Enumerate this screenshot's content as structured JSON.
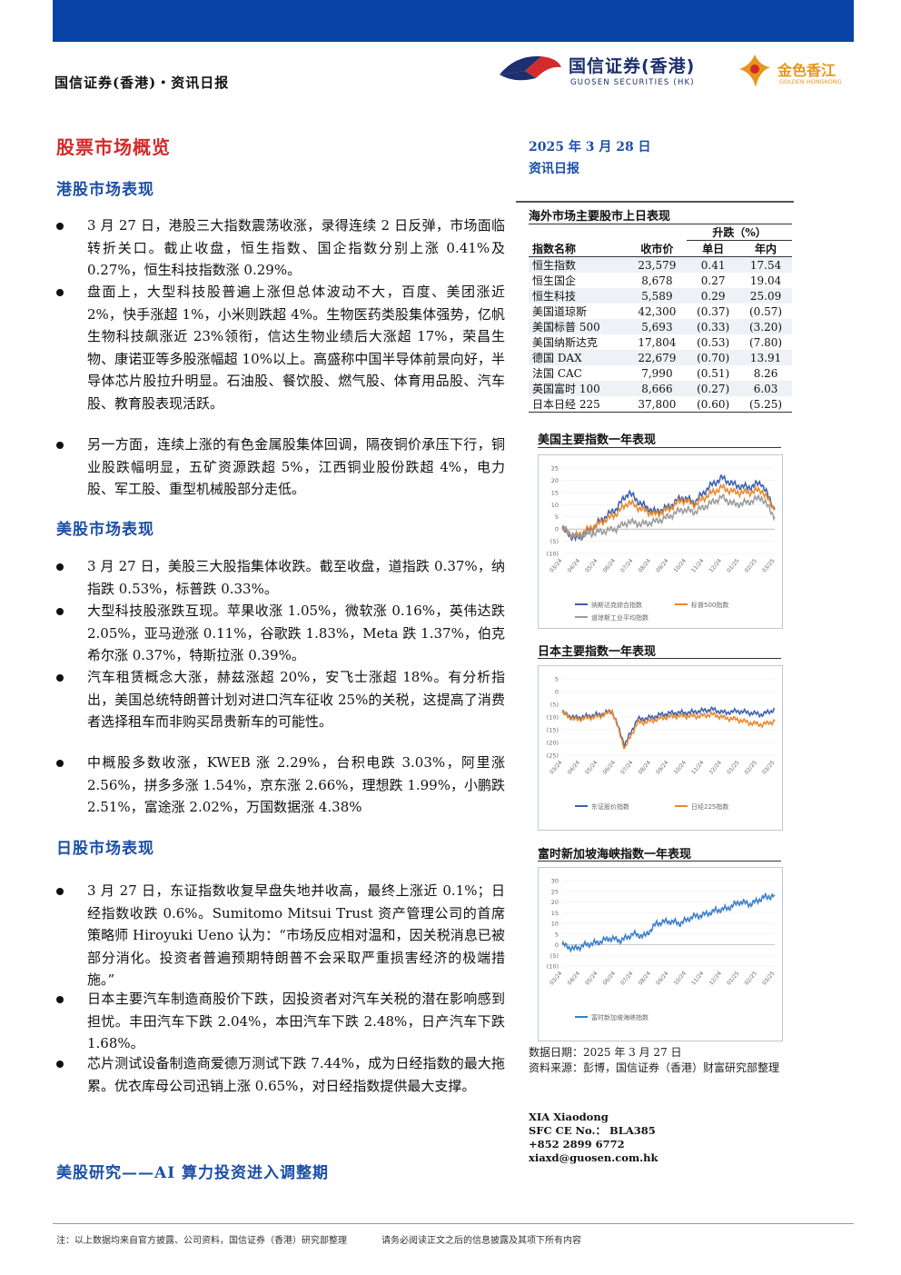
{
  "header": {
    "left": "国信证券(香港)・资讯日报",
    "logo_name": "国信证券(香港)",
    "logo_sub": "GUOSEN SECURITIES (HK)",
    "logo2_name": "金色香江",
    "logo2_sub": "GOLDEN HONGKONG"
  },
  "main_title": "股票市场概览",
  "sections": {
    "hk": {
      "title": "港股市场表现",
      "bullets": [
        "3 月 27 日，港股三大指数震荡收涨，录得连续 2 日反弹，市场面临转折关口。截止收盘，恒生指数、国企指数分别上涨 0.41%及 0.27%，恒生科技指数涨 0.29%。",
        "盘面上，大型科技股普遍上涨但总体波动不大，百度、美团涨近 2%，快手涨超 1%，小米则跌超 4%。生物医药类股集体强势，亿帆生物科技飙涨近 23%领衔，信达生物业绩后大涨超 17%，荣昌生物、康诺亚等多股涨幅超 10%以上。高盛称中国半导体前景向好，半导体芯片股拉升明显。石油股、餐饮股、燃气股、体育用品股、汽车股、教育股表现活跃。",
        "另一方面，连续上涨的有色金属股集体回调，隔夜铜价承压下行，铜业股跌幅明显，五矿资源跌超 5%，江西铜业股份跌超 4%，电力股、军工股、重型机械股部分走低。"
      ]
    },
    "us": {
      "title": "美股市场表现",
      "bullets": [
        "3 月 27 日，美股三大股指集体收跌。截至收盘，道指跌 0.37%，纳指跌 0.53%，标普跌 0.33%。",
        "大型科技股涨跌互现。苹果收涨 1.05%，微软涨 0.16%，英伟达跌 2.05%，亚马逊涨 0.11%，谷歌跌 1.83%，Meta 跌 1.37%，伯克希尔涨 0.37%，特斯拉涨 0.39%。",
        "汽车租赁概念大涨，赫兹涨超 20%，安飞士涨超 18%。有分析指出，美国总统特朗普计划对进口汽车征收 25%的关税，这提高了消费者选择租车而非购买昂贵新车的可能性。",
        "中概股多数收涨，KWEB 涨 2.29%，台积电跌 3.03%，阿里涨 2.56%，拼多多涨 1.54%，京东涨 2.66%，理想跌 1.99%，小鹏跌 2.51%，富途涨 2.02%，万国数据涨 4.38%"
      ]
    },
    "jp": {
      "title": "日股市场表现",
      "bullets": [
        "3 月 27 日，东证指数收复早盘失地并收高，最终上涨近 0.1%；日经指数收跌 0.6%。Sumitomo Mitsui Trust 资产管理公司的首席策略师 Hiroyuki Ueno 认为：“市场反应相对温和，因关税消息已被部分消化。投资者普遍预期特朗普不会采取严重损害经济的极端措施。”",
        "日本主要汽车制造商股价下跌，因投资者对汽车关税的潜在影响感到担忧。丰田汽车下跌 2.04%，本田汽车下跌 2.48%，日产汽车下跌 1.68%。",
        "芯片测试设备制造商爱德万测试下跌 7.44%，成为日经指数的最大拖累。优衣库母公司迅销上涨 0.65%，对日经指数提供最大支撑。"
      ]
    }
  },
  "research_title": "美股研究——AI 算力投资进入调整期",
  "side": {
    "date": "2025 年 3 月 28 日",
    "report": "资讯日报",
    "table_title": "海外市场主要股市上日表现",
    "col_change": "升跌（%）",
    "col_name": "指数名称",
    "col_close": "收市价",
    "col_day": "单日",
    "col_year": "年内",
    "rows": [
      {
        "name": "恒生指数",
        "close": "23,579",
        "day": "0.41",
        "ytd": "17.54"
      },
      {
        "name": "恒生国企",
        "close": "8,678",
        "day": "0.27",
        "ytd": "19.04"
      },
      {
        "name": "恒生科技",
        "close": "5,589",
        "day": "0.29",
        "ytd": "25.09"
      },
      {
        "name": "美国道琼斯",
        "close": "42,300",
        "day": "(0.37)",
        "ytd": "(0.57)"
      },
      {
        "name": "美国标普 500",
        "close": "5,693",
        "day": "(0.33)",
        "ytd": "(3.20)"
      },
      {
        "name": "美国纳斯达克",
        "close": "17,804",
        "day": "(0.53)",
        "ytd": "(7.80)"
      },
      {
        "name": "德国 DAX",
        "close": "22,679",
        "day": "(0.70)",
        "ytd": "13.91"
      },
      {
        "name": "法国 CAC",
        "close": "7,990",
        "day": "(0.51)",
        "ytd": "8.26"
      },
      {
        "name": "英国富时 100",
        "close": "8,666",
        "day": "(0.27)",
        "ytd": "6.03"
      },
      {
        "name": "日本日经 225",
        "close": "37,800",
        "day": "(0.60)",
        "ytd": "(5.25)"
      }
    ],
    "source_date": "数据日期：2025 年 3 月 27 日",
    "source": "资料来源：彭博，国信证券（香港）财富研究部整理",
    "analyst_name": "XIA Xiaodong",
    "analyst_sfc": "SFC CE No.： BLA385",
    "analyst_phone": "+852 2899 6772",
    "analyst_email": "xiaxd@guosen.com.hk"
  },
  "chart_data": [
    {
      "type": "line",
      "title": "美国主要指数一年表现",
      "yticks": [
        "25",
        "20",
        "15",
        "10",
        "5",
        "0",
        "(5)",
        "(10)"
      ],
      "ylim": [
        -10,
        25
      ],
      "xticks": [
        "03/24",
        "04/24",
        "05/24",
        "06/24",
        "07/24",
        "08/24",
        "09/24",
        "10/24",
        "11/24",
        "12/24",
        "01/25",
        "02/25",
        "03/25"
      ],
      "series": [
        {
          "name": "纳斯达克综合指数",
          "color": "#3a5fb0",
          "values": [
            0,
            -4,
            -1,
            4,
            8,
            15,
            10,
            7,
            9,
            13,
            11,
            17,
            21,
            18,
            17,
            19,
            8
          ]
        },
        {
          "name": "标普500指数",
          "color": "#e8882a",
          "values": [
            0,
            -3,
            0,
            3,
            6,
            11,
            8,
            6,
            8,
            12,
            10,
            14,
            17,
            15,
            15,
            16,
            8
          ]
        },
        {
          "name": "道琼斯工业平均指数",
          "color": "#9a9a9a",
          "values": [
            0,
            -3,
            -2,
            -1,
            0,
            3,
            2,
            3,
            5,
            8,
            7,
            10,
            13,
            10,
            11,
            13,
            5
          ]
        }
      ]
    },
    {
      "type": "line",
      "title": "日本主要指数一年表现",
      "yticks": [
        "5",
        "0",
        "(5)",
        "(10)",
        "(15)",
        "(20)",
        "(25)"
      ],
      "ylim": [
        -25,
        20
      ],
      "xticks": [
        "03/24",
        "04/24",
        "05/24",
        "06/24",
        "07/24",
        "08/24",
        "09/24",
        "10/24",
        "11/24",
        "12/24",
        "01/25",
        "02/25",
        "03/25"
      ],
      "series": [
        {
          "name": "东证股价指数",
          "color": "#3a5fb0",
          "values": [
            0,
            -3,
            -2,
            -1,
            1,
            -19,
            -4,
            -3,
            -1,
            0,
            0,
            1,
            2,
            0,
            1,
            0,
            -1,
            2
          ]
        },
        {
          "name": "日经225指数",
          "color": "#e8882a",
          "values": [
            0,
            -4,
            -3,
            -2,
            1,
            -21,
            -6,
            -5,
            -3,
            -2,
            -2,
            -2,
            -1,
            -3,
            -4,
            -6,
            -7,
            -5
          ]
        }
      ]
    },
    {
      "type": "line",
      "title": "富时新加坡海峡指数一年表现",
      "yticks": [
        "30",
        "25",
        "20",
        "15",
        "10",
        "5",
        "0",
        "(5)",
        "(10)"
      ],
      "ylim": [
        -10,
        30
      ],
      "xticks": [
        "03/24",
        "04/24",
        "05/24",
        "06/24",
        "07/24",
        "08/24",
        "09/24",
        "10/24",
        "11/24",
        "12/24",
        "01/25",
        "02/25",
        "03/25"
      ],
      "series": [
        {
          "name": "富时新加坡海峡指数",
          "color": "#3a7fc9",
          "values": [
            0,
            -2,
            0,
            1,
            3,
            2,
            5,
            4,
            10,
            11,
            10,
            13,
            14,
            16,
            17,
            20,
            19,
            22,
            23
          ]
        }
      ]
    }
  ],
  "footer": {
    "note": "注：以上数据均来自官方披露、公司资料，国信证券（香港）研究部整理",
    "disclaimer": "请务必阅读正文之后的信息披露及其项下所有内容"
  }
}
